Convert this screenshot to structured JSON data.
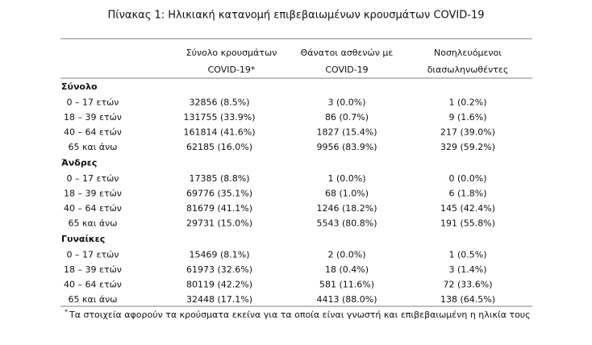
{
  "title": "Πίνακας 1: Ηλικιακή κατανομή επιβεβαιωμένων κρουσμάτων COVID-19",
  "header": [
    {
      "lines": [
        "Σύνολο κρουσμάτων",
        "COVID-19*"
      ]
    },
    {
      "lines": [
        "Θάνατοι ασθενών με",
        "COVID-19"
      ]
    },
    {
      "lines": [
        "Νοσηλευόμενοι",
        "διασωληνωθέντες"
      ]
    }
  ],
  "sections": [
    {
      "name": "Σύνολο",
      "rows": [
        {
          "label": "0 – 17 ετών",
          "cells": [
            "32856 (8.5%)",
            "3 (0.0%)",
            "1 (0.2%)"
          ]
        },
        {
          "label": "18 – 39 ετών",
          "cells": [
            "131755 (33.9%)",
            "86 (0.7%)",
            "9 (1.6%)"
          ]
        },
        {
          "label": "40 – 64 ετών",
          "cells": [
            "161814 (41.6%)",
            "1827 (15.4%)",
            "217 (39.0%)"
          ]
        },
        {
          "label": "65 και άνω",
          "cells": [
            "62185 (16.0%)",
            "9956 (83.9%)",
            "329 (59.2%)"
          ]
        }
      ]
    },
    {
      "name": "Άνδρες",
      "rows": [
        {
          "label": "0 – 17 ετών",
          "cells": [
            "17385 (8.8%)",
            "1 (0.0%)",
            "0 (0.0%)"
          ]
        },
        {
          "label": "18 – 39 ετών",
          "cells": [
            "69776 (35.1%)",
            "68 (1.0%)",
            "6 (1.8%)"
          ]
        },
        {
          "label": "40 – 64 ετών",
          "cells": [
            "81679 (41.1%)",
            "1246 (18.2%)",
            "145 (42.4%)"
          ]
        },
        {
          "label": "65 και άνω",
          "cells": [
            "29731 (15.0%)",
            "5543 (80.8%)",
            "191 (55.8%)"
          ]
        }
      ]
    },
    {
      "name": "Γυναίκες",
      "rows": [
        {
          "label": "0 – 17 ετών",
          "cells": [
            "15469 (8.1%)",
            "2 (0.0%)",
            "1 (0.5%)"
          ]
        },
        {
          "label": "18 – 39 ετών",
          "cells": [
            "61973 (32.6%)",
            "18 (0.4%)",
            "3 (1.4%)"
          ]
        },
        {
          "label": "40 – 64 ετών",
          "cells": [
            "80119 (42.2%)",
            "581 (11.6%)",
            "72 (33.6%)"
          ]
        },
        {
          "label": "65 και άνω",
          "cells": [
            "32448 (17.1%)",
            "4413 (88.0%)",
            "138 (64.5%)"
          ]
        }
      ]
    }
  ],
  "footnote": {
    "marker": "*",
    "text": "Τα στοιχεία αφορούν τα κρούσματα εκείνα για τα οποία είναι γνωστή και επιβεβαιωμένη η ηλικία τους"
  }
}
